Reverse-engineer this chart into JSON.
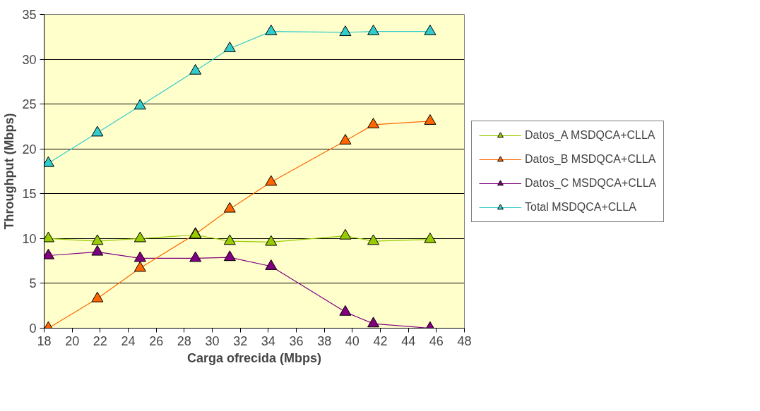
{
  "chart_data": {
    "type": "line",
    "xlabel": "Carga ofrecida (Mbps)",
    "ylabel": "Throughput (Mbps)",
    "x": [
      18.3,
      21.8,
      24.85,
      28.8,
      31.25,
      34.2,
      39.5,
      41.5,
      45.55
    ],
    "xlim": [
      18,
      48
    ],
    "xticks": [
      18,
      20,
      22,
      24,
      26,
      28,
      30,
      32,
      34,
      36,
      38,
      40,
      42,
      44,
      46,
      48
    ],
    "ylim": [
      0,
      35
    ],
    "yticks": [
      0,
      5,
      10,
      15,
      20,
      25,
      30,
      35
    ],
    "grid": "y",
    "legend": "right",
    "marker": "triangle",
    "line_style": "solid",
    "series": [
      {
        "name": "Datos_A MSDQCA+CLLA",
        "color": "#99cc00",
        "values": [
          10.0,
          9.7,
          10.0,
          10.4,
          9.7,
          9.6,
          10.3,
          9.7,
          9.9
        ]
      },
      {
        "name": "Datos_B MSDQCA+CLLA",
        "color": "#ff6600",
        "values": [
          0.0,
          3.3,
          6.7,
          10.5,
          13.3,
          16.3,
          20.9,
          22.7,
          23.1
        ]
      },
      {
        "name": "Datos_C MSDQCA+CLLA",
        "color": "#800080",
        "values": [
          8.1,
          8.5,
          7.8,
          7.8,
          7.9,
          6.9,
          1.8,
          0.5,
          0.0
        ]
      },
      {
        "name": "Total MSDQCA+CLLA",
        "color": "#33cccc",
        "values": [
          18.4,
          21.8,
          24.8,
          28.7,
          31.2,
          33.1,
          33.0,
          33.1,
          33.1
        ]
      }
    ]
  }
}
